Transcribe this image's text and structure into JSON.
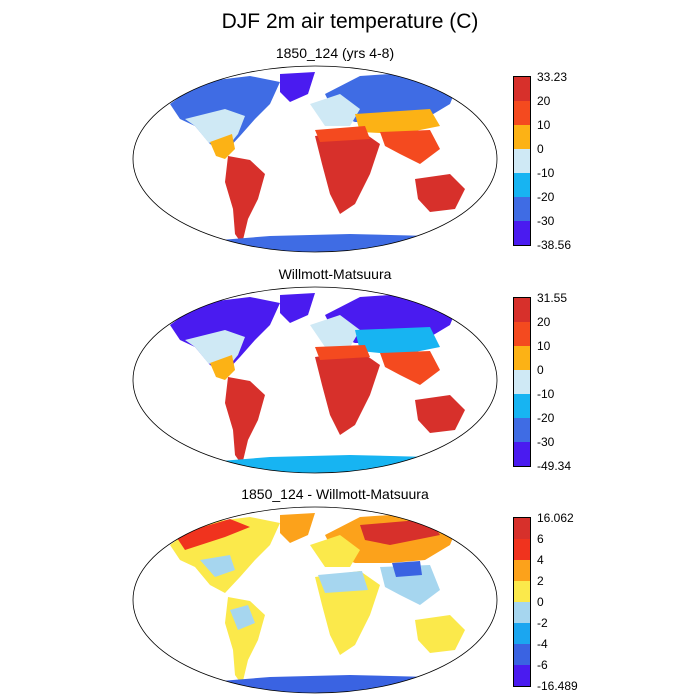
{
  "title": "DJF 2m air temperature (C)",
  "panels": [
    {
      "title": "1850_124 (yrs 4-8)",
      "colorbar": {
        "labels": [
          "33.23",
          "20",
          "10",
          "0",
          "-10",
          "-20",
          "-30",
          "-38.56"
        ],
        "colors": [
          "#d7302b",
          "#f44a1f",
          "#fcb215",
          "#cfe9f5",
          "#17b4f2",
          "#3f6ce4",
          "#4a1bf0"
        ]
      }
    },
    {
      "title": "Willmott-Matsuura",
      "colorbar": {
        "labels": [
          "31.55",
          "20",
          "10",
          "0",
          "-10",
          "-20",
          "-30",
          "-49.34"
        ],
        "colors": [
          "#d7302b",
          "#f44a1f",
          "#fcb215",
          "#cfe9f5",
          "#17b4f2",
          "#3f6ce4",
          "#4a1bf0"
        ]
      }
    },
    {
      "title": "1850_124 - Willmott-Matsuura",
      "colorbar": {
        "labels": [
          "16.062",
          "6",
          "4",
          "2",
          "0",
          "-2",
          "-4",
          "-6",
          "-16.489"
        ],
        "colors": [
          "#d7302b",
          "#f0331e",
          "#fca21b",
          "#fbe94b",
          "#a6d6ef",
          "#1ba6f0",
          "#3a63e2",
          "#4a1bf0"
        ]
      }
    }
  ]
}
